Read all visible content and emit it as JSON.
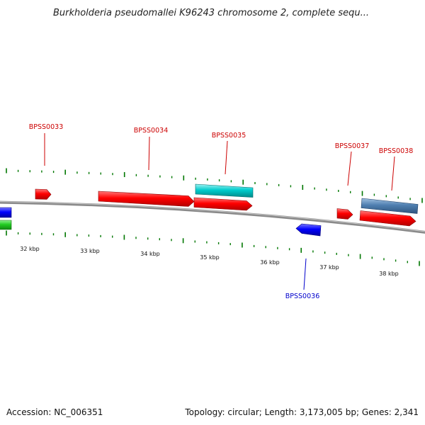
{
  "title": "Burkholderia pseudomallei K96243 chromosome 2, complete sequ...",
  "footer": {
    "accession": "Accession: NC_006351",
    "summary": "Topology: circular; Length: 3,173,005 bp; Genes: 2,341"
  },
  "kbp_labels": [
    "32 kbp",
    "33 kbp",
    "34 kbp",
    "35 kbp",
    "36 kbp",
    "37 kbp",
    "38 kbp"
  ],
  "genes": [
    {
      "id": "g33",
      "name": "BPSS0033",
      "strand": "forward",
      "label_color": "#cc0000"
    },
    {
      "id": "g34",
      "name": "BPSS0034",
      "strand": "forward",
      "label_color": "#cc0000"
    },
    {
      "id": "g35",
      "name": "BPSS0035",
      "strand": "forward",
      "label_color": "#cc0000"
    },
    {
      "id": "g36",
      "name": "BPSS0036",
      "strand": "reverse",
      "label_color": "#0000cc"
    },
    {
      "id": "g37",
      "name": "BPSS0037",
      "strand": "forward",
      "label_color": "#cc0000"
    },
    {
      "id": "g38",
      "name": "BPSS0038",
      "strand": "forward",
      "label_color": "#cc0000"
    }
  ],
  "colors": {
    "forward_gene": "#ff0000",
    "reverse_gene": "#0000ff",
    "cds_cyan": "#00cccc",
    "cds_steelblue": "#4f7fb0",
    "green_feature": "#22cc22",
    "backbone": "#888888",
    "tick": "#007700"
  }
}
